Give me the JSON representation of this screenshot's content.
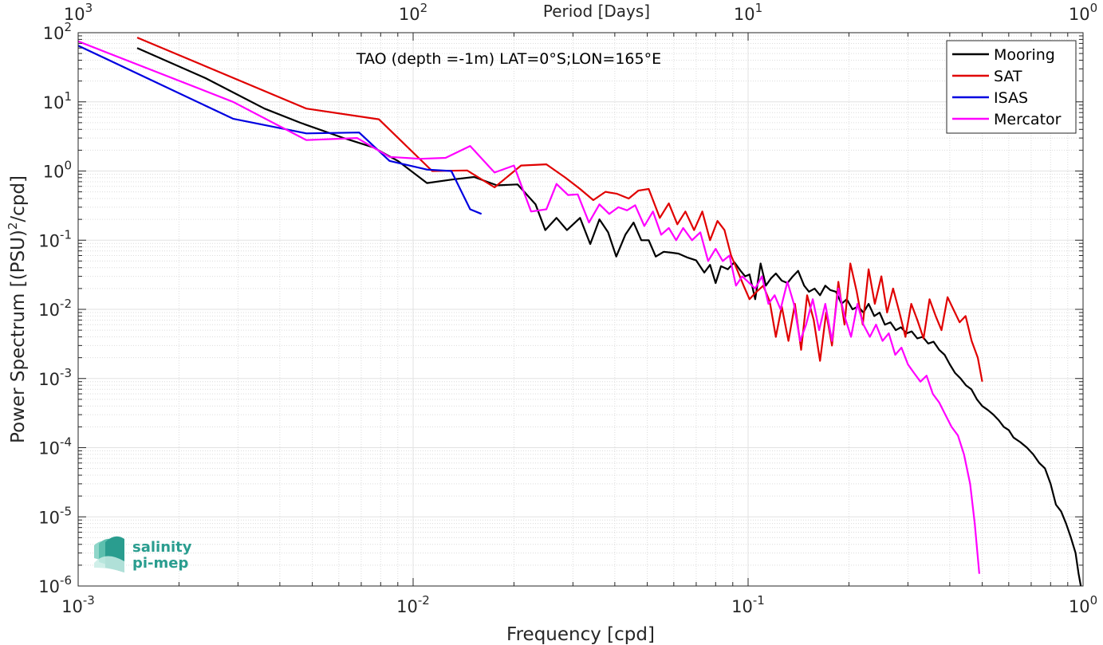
{
  "chart_data": {
    "type": "line",
    "title": "TAO (depth =-1m) LAT=0°S;LON=165°E",
    "xlabel": "Frequency [cpd]",
    "ylabel_main": "Power Spectrum [(PSU)",
    "ylabel_sup": "2",
    "ylabel_tail": "/cpd]",
    "x2label": "Period [Days]",
    "xscale": "log",
    "yscale": "log",
    "xlim": [
      0.001,
      1
    ],
    "ylim": [
      1e-06,
      100
    ],
    "grid": true,
    "legend_position": "top-right",
    "x_ticks": [
      {
        "value": 0.001,
        "base": "10",
        "exp": "-3"
      },
      {
        "value": 0.01,
        "base": "10",
        "exp": "-2"
      },
      {
        "value": 0.1,
        "base": "10",
        "exp": "-1"
      },
      {
        "value": 1,
        "base": "10",
        "exp": "0"
      }
    ],
    "x2_ticks": [
      {
        "value": 0.001,
        "base": "10",
        "exp": "3"
      },
      {
        "value": 0.01,
        "base": "10",
        "exp": "2"
      },
      {
        "value": 0.1,
        "base": "10",
        "exp": "1"
      },
      {
        "value": 1,
        "base": "10",
        "exp": "0"
      }
    ],
    "y_ticks": [
      {
        "value": 1e-06,
        "base": "10",
        "exp": "-6"
      },
      {
        "value": 1e-05,
        "base": "10",
        "exp": "-5"
      },
      {
        "value": 0.0001,
        "base": "10",
        "exp": "-4"
      },
      {
        "value": 0.001,
        "base": "10",
        "exp": "-3"
      },
      {
        "value": 0.01,
        "base": "10",
        "exp": "-2"
      },
      {
        "value": 0.1,
        "base": "10",
        "exp": "-1"
      },
      {
        "value": 1,
        "base": "10",
        "exp": "0"
      },
      {
        "value": 10,
        "base": "10",
        "exp": "1"
      },
      {
        "value": 100,
        "base": "10",
        "exp": "2"
      }
    ],
    "series": [
      {
        "name": "Mooring",
        "color": "#000000",
        "points": [
          [
            0.0015,
            60
          ],
          [
            0.0024,
            22
          ],
          [
            0.0036,
            8
          ],
          [
            0.0046,
            5
          ],
          [
            0.0062,
            3
          ],
          [
            0.0076,
            2.2
          ],
          [
            0.009,
            1.4
          ],
          [
            0.011,
            0.67
          ],
          [
            0.013,
            0.75
          ],
          [
            0.0152,
            0.82
          ],
          [
            0.0178,
            0.62
          ],
          [
            0.0205,
            0.64
          ],
          [
            0.0232,
            0.33
          ],
          [
            0.0248,
            0.14
          ],
          [
            0.0268,
            0.21
          ],
          [
            0.0288,
            0.14
          ],
          [
            0.0315,
            0.21
          ],
          [
            0.0338,
            0.088
          ],
          [
            0.036,
            0.2
          ],
          [
            0.0382,
            0.13
          ],
          [
            0.0404,
            0.058
          ],
          [
            0.043,
            0.12
          ],
          [
            0.0455,
            0.18
          ],
          [
            0.048,
            0.1
          ],
          [
            0.0505,
            0.1
          ],
          [
            0.053,
            0.058
          ],
          [
            0.056,
            0.068
          ],
          [
            0.059,
            0.066
          ],
          [
            0.062,
            0.064
          ],
          [
            0.066,
            0.056
          ],
          [
            0.07,
            0.051
          ],
          [
            0.074,
            0.034
          ],
          [
            0.077,
            0.044
          ],
          [
            0.08,
            0.024
          ],
          [
            0.083,
            0.042
          ],
          [
            0.087,
            0.038
          ],
          [
            0.091,
            0.048
          ],
          [
            0.095,
            0.036
          ],
          [
            0.098,
            0.03
          ],
          [
            0.101,
            0.032
          ],
          [
            0.105,
            0.014
          ],
          [
            0.109,
            0.046
          ],
          [
            0.113,
            0.022
          ],
          [
            0.117,
            0.028
          ],
          [
            0.121,
            0.033
          ],
          [
            0.126,
            0.026
          ],
          [
            0.131,
            0.024
          ],
          [
            0.136,
            0.03
          ],
          [
            0.141,
            0.036
          ],
          [
            0.147,
            0.022
          ],
          [
            0.152,
            0.018
          ],
          [
            0.158,
            0.02
          ],
          [
            0.164,
            0.016
          ],
          [
            0.17,
            0.022
          ],
          [
            0.176,
            0.019
          ],
          [
            0.183,
            0.018
          ],
          [
            0.19,
            0.012
          ],
          [
            0.197,
            0.014
          ],
          [
            0.205,
            0.01
          ],
          [
            0.213,
            0.011
          ],
          [
            0.221,
            0.009
          ],
          [
            0.229,
            0.012
          ],
          [
            0.238,
            0.008
          ],
          [
            0.247,
            0.009
          ],
          [
            0.256,
            0.006
          ],
          [
            0.266,
            0.0065
          ],
          [
            0.276,
            0.005
          ],
          [
            0.286,
            0.0055
          ],
          [
            0.297,
            0.0045
          ],
          [
            0.308,
            0.0048
          ],
          [
            0.32,
            0.0038
          ],
          [
            0.332,
            0.004
          ],
          [
            0.345,
            0.0032
          ],
          [
            0.358,
            0.0034
          ],
          [
            0.372,
            0.0026
          ],
          [
            0.386,
            0.0022
          ],
          [
            0.4,
            0.0016
          ],
          [
            0.415,
            0.0012
          ],
          [
            0.431,
            0.001
          ],
          [
            0.447,
            0.0008
          ],
          [
            0.464,
            0.0007
          ],
          [
            0.482,
            0.0005
          ],
          [
            0.5,
            0.0004
          ],
          [
            0.52,
            0.00035
          ],
          [
            0.54,
            0.0003
          ],
          [
            0.56,
            0.00025
          ],
          [
            0.58,
            0.0002
          ],
          [
            0.6,
            0.00018
          ],
          [
            0.62,
            0.00014
          ],
          [
            0.65,
            0.00012
          ],
          [
            0.68,
            0.0001
          ],
          [
            0.71,
            8e-05
          ],
          [
            0.74,
            6e-05
          ],
          [
            0.77,
            5e-05
          ],
          [
            0.8,
            3e-05
          ],
          [
            0.83,
            1.5e-05
          ],
          [
            0.86,
            1.2e-05
          ],
          [
            0.89,
            8e-06
          ],
          [
            0.92,
            5e-06
          ],
          [
            0.95,
            3e-06
          ],
          [
            0.97,
            1.5e-06
          ],
          [
            0.985,
            1e-06
          ]
        ]
      },
      {
        "name": "SAT",
        "color": "#e00000",
        "points": [
          [
            0.0015,
            85
          ],
          [
            0.0048,
            8
          ],
          [
            0.0079,
            5.6
          ],
          [
            0.0114,
            1.0
          ],
          [
            0.0145,
            1.02
          ],
          [
            0.0175,
            0.58
          ],
          [
            0.021,
            1.2
          ],
          [
            0.025,
            1.25
          ],
          [
            0.0285,
            0.8
          ],
          [
            0.0315,
            0.55
          ],
          [
            0.0345,
            0.38
          ],
          [
            0.0375,
            0.5
          ],
          [
            0.0405,
            0.47
          ],
          [
            0.044,
            0.4
          ],
          [
            0.047,
            0.52
          ],
          [
            0.0505,
            0.55
          ],
          [
            0.0545,
            0.21
          ],
          [
            0.058,
            0.34
          ],
          [
            0.0615,
            0.17
          ],
          [
            0.065,
            0.26
          ],
          [
            0.069,
            0.14
          ],
          [
            0.073,
            0.26
          ],
          [
            0.077,
            0.1
          ],
          [
            0.081,
            0.19
          ],
          [
            0.085,
            0.14
          ],
          [
            0.089,
            0.06
          ],
          [
            0.093,
            0.036
          ],
          [
            0.097,
            0.022
          ],
          [
            0.101,
            0.014
          ],
          [
            0.106,
            0.018
          ],
          [
            0.111,
            0.022
          ],
          [
            0.116,
            0.013
          ],
          [
            0.121,
            0.004
          ],
          [
            0.126,
            0.011
          ],
          [
            0.132,
            0.0035
          ],
          [
            0.138,
            0.012
          ],
          [
            0.144,
            0.0026
          ],
          [
            0.15,
            0.016
          ],
          [
            0.157,
            0.007
          ],
          [
            0.164,
            0.0018
          ],
          [
            0.171,
            0.009
          ],
          [
            0.178,
            0.003
          ],
          [
            0.186,
            0.025
          ],
          [
            0.194,
            0.006
          ],
          [
            0.202,
            0.046
          ],
          [
            0.211,
            0.018
          ],
          [
            0.22,
            0.006
          ],
          [
            0.229,
            0.038
          ],
          [
            0.239,
            0.012
          ],
          [
            0.25,
            0.03
          ],
          [
            0.26,
            0.009
          ],
          [
            0.271,
            0.02
          ],
          [
            0.283,
            0.009
          ],
          [
            0.295,
            0.004
          ],
          [
            0.307,
            0.012
          ],
          [
            0.32,
            0.007
          ],
          [
            0.334,
            0.0038
          ],
          [
            0.348,
            0.014
          ],
          [
            0.363,
            0.008
          ],
          [
            0.378,
            0.005
          ],
          [
            0.394,
            0.015
          ],
          [
            0.41,
            0.01
          ],
          [
            0.428,
            0.0065
          ],
          [
            0.446,
            0.008
          ],
          [
            0.465,
            0.0035
          ],
          [
            0.485,
            0.002
          ],
          [
            0.5,
            0.0009
          ]
        ]
      },
      {
        "name": "ISAS",
        "color": "#0000e0",
        "points": [
          [
            0.001,
            65
          ],
          [
            0.0029,
            5.7
          ],
          [
            0.0048,
            3.5
          ],
          [
            0.0069,
            3.6
          ],
          [
            0.0085,
            1.4
          ],
          [
            0.011,
            1.05
          ],
          [
            0.013,
            1.0
          ],
          [
            0.0148,
            0.28
          ],
          [
            0.016,
            0.24
          ]
        ]
      },
      {
        "name": "Mercator",
        "color": "#ff00ff",
        "points": [
          [
            0.001,
            75
          ],
          [
            0.0029,
            10
          ],
          [
            0.0048,
            2.8
          ],
          [
            0.0068,
            3.0
          ],
          [
            0.0085,
            1.6
          ],
          [
            0.0105,
            1.5
          ],
          [
            0.0125,
            1.55
          ],
          [
            0.0148,
            2.3
          ],
          [
            0.0175,
            0.95
          ],
          [
            0.02,
            1.2
          ],
          [
            0.0225,
            0.26
          ],
          [
            0.025,
            0.28
          ],
          [
            0.0268,
            0.65
          ],
          [
            0.029,
            0.45
          ],
          [
            0.031,
            0.46
          ],
          [
            0.0335,
            0.18
          ],
          [
            0.036,
            0.33
          ],
          [
            0.0385,
            0.24
          ],
          [
            0.041,
            0.3
          ],
          [
            0.0435,
            0.27
          ],
          [
            0.046,
            0.32
          ],
          [
            0.049,
            0.16
          ],
          [
            0.052,
            0.26
          ],
          [
            0.055,
            0.12
          ],
          [
            0.058,
            0.15
          ],
          [
            0.061,
            0.1
          ],
          [
            0.064,
            0.15
          ],
          [
            0.068,
            0.1
          ],
          [
            0.072,
            0.13
          ],
          [
            0.076,
            0.05
          ],
          [
            0.08,
            0.075
          ],
          [
            0.084,
            0.05
          ],
          [
            0.088,
            0.06
          ],
          [
            0.092,
            0.022
          ],
          [
            0.096,
            0.03
          ],
          [
            0.1,
            0.025
          ],
          [
            0.105,
            0.02
          ],
          [
            0.11,
            0.03
          ],
          [
            0.115,
            0.012
          ],
          [
            0.12,
            0.016
          ],
          [
            0.125,
            0.01
          ],
          [
            0.131,
            0.025
          ],
          [
            0.137,
            0.012
          ],
          [
            0.143,
            0.0035
          ],
          [
            0.149,
            0.006
          ],
          [
            0.156,
            0.014
          ],
          [
            0.163,
            0.005
          ],
          [
            0.17,
            0.012
          ],
          [
            0.178,
            0.0035
          ],
          [
            0.186,
            0.02
          ],
          [
            0.194,
            0.008
          ],
          [
            0.203,
            0.004
          ],
          [
            0.212,
            0.012
          ],
          [
            0.221,
            0.006
          ],
          [
            0.231,
            0.004
          ],
          [
            0.241,
            0.006
          ],
          [
            0.252,
            0.0035
          ],
          [
            0.263,
            0.0045
          ],
          [
            0.275,
            0.0022
          ],
          [
            0.287,
            0.0028
          ],
          [
            0.3,
            0.0016
          ],
          [
            0.313,
            0.0012
          ],
          [
            0.327,
            0.0009
          ],
          [
            0.341,
            0.0011
          ],
          [
            0.356,
            0.0006
          ],
          [
            0.372,
            0.00045
          ],
          [
            0.388,
            0.0003
          ],
          [
            0.405,
            0.0002
          ],
          [
            0.423,
            0.00015
          ],
          [
            0.441,
            8e-05
          ],
          [
            0.46,
            3e-05
          ],
          [
            0.475,
            8e-06
          ],
          [
            0.49,
            1.5e-06
          ]
        ]
      }
    ]
  },
  "logo": {
    "line1": "salinity",
    "line2": "pi-mep",
    "color": "#2a9d8f"
  }
}
